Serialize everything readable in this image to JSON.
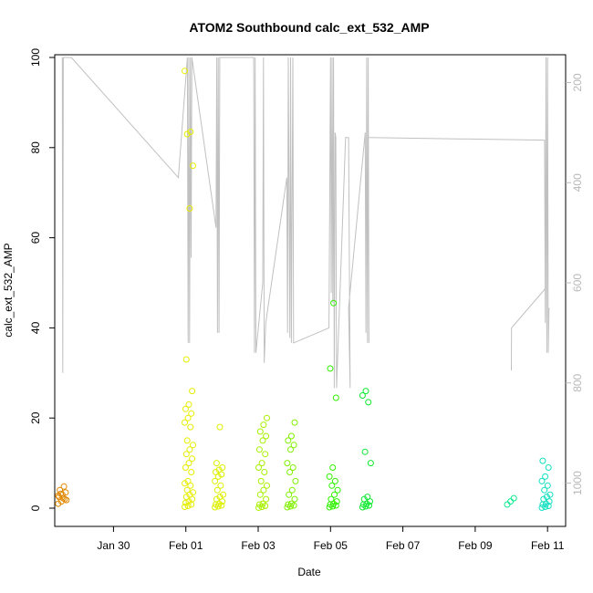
{
  "chart_data": {
    "type": "scatter",
    "title": "ATOM2 Southbound calc_ext_532_AMP",
    "xlabel": "Date",
    "ylabel": "calc_ext_532_AMP",
    "ylim": [
      0,
      100
    ],
    "y2lim": [
      1050,
      150
    ],
    "xlim": [
      "2025-01-28T09:00",
      "2025-02-11T12:00"
    ],
    "x_ticks": [
      {
        "label": "Jan 30",
        "date": "2025-01-30"
      },
      {
        "label": "Feb 01",
        "date": "2025-02-01"
      },
      {
        "label": "Feb 03",
        "date": "2025-02-03"
      },
      {
        "label": "Feb 05",
        "date": "2025-02-05"
      },
      {
        "label": "Feb 07",
        "date": "2025-02-07"
      },
      {
        "label": "Feb 09",
        "date": "2025-02-09"
      },
      {
        "label": "Feb 11",
        "date": "2025-02-11"
      }
    ],
    "y_ticks": [
      0,
      20,
      40,
      60,
      80,
      100
    ],
    "y2_ticks": [
      200,
      400,
      600,
      800,
      1000
    ],
    "grid": false,
    "legend": "none",
    "depth_track_color": "#c0c0c0",
    "depth_track": [
      [
        "2025-01-28T14:00",
        150
      ],
      [
        "2025-01-28T14:20",
        780
      ],
      [
        "2025-01-28T14:40",
        150
      ],
      [
        "2025-01-28T20:00",
        150
      ],
      [
        "2025-01-31T19:00",
        390
      ],
      [
        "2025-02-01T01:00",
        150
      ],
      [
        "2025-02-01T01:30",
        720
      ],
      [
        "2025-02-01T02:00",
        150
      ],
      [
        "2025-02-01T02:30",
        720
      ],
      [
        "2025-02-01T03:00",
        150
      ],
      [
        "2025-02-01T03:30",
        550
      ],
      [
        "2025-02-01T04:00",
        150
      ],
      [
        "2025-02-01T20:00",
        490
      ],
      [
        "2025-02-01T20:30",
        150
      ],
      [
        "2025-02-01T21:00",
        700
      ],
      [
        "2025-02-01T21:30",
        150
      ],
      [
        "2025-02-01T22:00",
        700
      ],
      [
        "2025-02-01T22:30",
        150
      ],
      [
        "2025-02-02T21:00",
        150
      ],
      [
        "2025-02-02T21:30",
        740
      ],
      [
        "2025-02-02T22:00",
        150
      ],
      [
        "2025-02-02T22:30",
        740
      ],
      [
        "2025-02-03T03:00",
        600
      ],
      [
        "2025-02-03T03:30",
        150
      ],
      [
        "2025-02-03T04:00",
        760
      ],
      [
        "2025-02-03T05:00",
        680
      ],
      [
        "2025-02-03T19:00",
        390
      ],
      [
        "2025-02-03T19:30",
        700
      ],
      [
        "2025-02-03T20:00",
        150
      ],
      [
        "2025-02-03T21:00",
        710
      ],
      [
        "2025-02-03T21:30",
        150
      ],
      [
        "2025-02-03T22:00",
        720
      ],
      [
        "2025-02-03T23:00",
        150
      ],
      [
        "2025-02-03T23:30",
        720
      ],
      [
        "2025-02-04T23:00",
        690
      ],
      [
        "2025-02-05T00:00",
        150
      ],
      [
        "2025-02-05T00:30",
        620
      ],
      [
        "2025-02-05T01:00",
        150
      ],
      [
        "2025-02-05T01:30",
        640
      ],
      [
        "2025-02-05T02:00",
        150
      ],
      [
        "2025-02-05T02:30",
        810
      ],
      [
        "2025-02-05T03:00",
        300
      ],
      [
        "2025-02-05T03:30",
        310
      ],
      [
        "2025-02-05T04:00",
        810
      ],
      [
        "2025-02-05T10:00",
        310
      ],
      [
        "2025-02-05T12:00",
        310
      ],
      [
        "2025-02-05T13:00",
        810
      ],
      [
        "2025-02-05T12:00",
        650
      ],
      [
        "2025-02-05T23:00",
        300
      ],
      [
        "2025-02-05T23:30",
        700
      ],
      [
        "2025-02-06T00:00",
        150
      ],
      [
        "2025-02-06T00:30",
        720
      ],
      [
        "2025-02-06T01:00",
        150
      ],
      [
        "2025-02-06T01:30",
        720
      ]
    ],
    "depth_track_2": [
      [
        "2025-02-06T01:30",
        310
      ],
      [
        "2025-02-10T22:00",
        315
      ],
      [
        "2025-02-10T22:30",
        680
      ],
      [
        "2025-02-10T23:00",
        150
      ],
      [
        "2025-02-10T23:30",
        740
      ],
      [
        "2025-02-11T00:00",
        150
      ],
      [
        "2025-02-11T00:30",
        740
      ],
      [
        "2025-02-11T01:00",
        650
      ]
    ],
    "depth_track_3": [
      [
        "2025-02-10T00:00",
        775
      ],
      [
        "2025-02-10T00:05",
        690
      ],
      [
        "2025-02-10T23:00",
        610
      ]
    ],
    "series": [
      {
        "color": "#e08800",
        "x": "2025-01-28T14:00",
        "values": [
          1.0,
          1.5,
          2.0,
          2.5,
          3.0,
          3.5,
          4.0,
          2.2,
          1.8,
          3.2,
          4.8,
          2.8
        ]
      },
      {
        "color": "#e6ee00",
        "x": "2025-02-01T02:00",
        "values": [
          0.3,
          0.5,
          0.8,
          1.2,
          1.5,
          2.0,
          2.5,
          3.0,
          3.5,
          4.0,
          5.0,
          5.5,
          6.0,
          8.0,
          9.0,
          10.0,
          11.0,
          12.0,
          13.0,
          14.0,
          15.0,
          18.0,
          19.0,
          20.0,
          21.0,
          22.0,
          23.0,
          26.0,
          33.0,
          66.5,
          76.0,
          83.0,
          83.5,
          97.0
        ]
      },
      {
        "color": "#ddf000",
        "x": "2025-02-01T22:00",
        "values": [
          0.2,
          0.4,
          0.6,
          0.8,
          1.0,
          1.5,
          2.0,
          2.5,
          3.0,
          4.0,
          5.0,
          6.0,
          7.0,
          7.5,
          8.0,
          8.5,
          9.0,
          10.0,
          18.0
        ]
      },
      {
        "color": "#a8f000",
        "x": "2025-02-03T03:00",
        "values": [
          0.1,
          0.3,
          0.5,
          0.8,
          1.0,
          2.0,
          3.0,
          4.0,
          5.0,
          6.0,
          8.0,
          9.0,
          10.0,
          12.0,
          13.0,
          15.0,
          16.0,
          17.0,
          18.5,
          20.0
        ]
      },
      {
        "color": "#80f000",
        "x": "2025-02-03T22:00",
        "values": [
          0.2,
          0.4,
          0.6,
          0.8,
          1.0,
          2.0,
          3.0,
          4.0,
          6.0,
          8.0,
          9.0,
          10.0,
          13.0,
          14.0,
          15.0,
          16.0,
          19.0
        ]
      },
      {
        "color": "#30f000",
        "x": "2025-02-05T02:00",
        "values": [
          0.2,
          0.4,
          0.6,
          0.8,
          1.0,
          1.5,
          2.0,
          3.0,
          4.0,
          5.0,
          6.0,
          7.0,
          9.0,
          24.5,
          31.0,
          45.5
        ]
      },
      {
        "color": "#10e830",
        "x": "2025-02-06T00:00",
        "values": [
          0.2,
          0.4,
          0.6,
          0.8,
          1.0,
          1.5,
          2.0,
          2.5,
          10.0,
          12.5,
          23.5,
          25.0,
          26.0
        ]
      },
      {
        "color": "#10e890",
        "x": "2025-02-10T00:00",
        "values": [
          0.8,
          1.5,
          2.2
        ]
      },
      {
        "color": "#10e0c0",
        "x": "2025-02-10T23:00",
        "values": [
          0.1,
          0.3,
          0.5,
          0.8,
          1.0,
          1.5,
          2.0,
          2.5,
          3.0,
          4.0,
          5.0,
          6.0,
          7.0,
          9.0,
          10.5
        ]
      }
    ]
  }
}
